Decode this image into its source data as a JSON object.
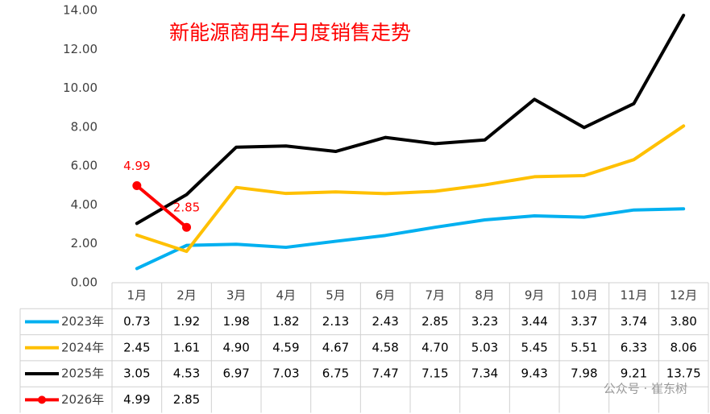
{
  "chart_data": {
    "type": "line",
    "title": "新能源商用车月度销售走势",
    "categories": [
      "1月",
      "2月",
      "3月",
      "4月",
      "5月",
      "6月",
      "7月",
      "8月",
      "9月",
      "10月",
      "11月",
      "12月"
    ],
    "series": [
      {
        "name": "2023年",
        "color": "#00b0f0",
        "values": [
          0.73,
          1.92,
          1.98,
          1.82,
          2.13,
          2.43,
          2.85,
          3.23,
          3.44,
          3.37,
          3.74,
          3.8
        ],
        "value_labels": [
          "0.73",
          "1.92",
          "1.98",
          "1.82",
          "2.13",
          "2.43",
          "2.85",
          "3.23",
          "3.44",
          "3.37",
          "3.74",
          "3.80"
        ]
      },
      {
        "name": "2024年",
        "color": "#ffc000",
        "values": [
          2.45,
          1.61,
          4.9,
          4.59,
          4.67,
          4.58,
          4.7,
          5.03,
          5.45,
          5.51,
          6.33,
          8.06
        ],
        "value_labels": [
          "2.45",
          "1.61",
          "4.90",
          "4.59",
          "4.67",
          "4.58",
          "4.70",
          "5.03",
          "5.45",
          "5.51",
          "6.33",
          "8.06"
        ]
      },
      {
        "name": "2025年",
        "color": "#000000",
        "values": [
          3.05,
          4.53,
          6.97,
          7.03,
          6.75,
          7.47,
          7.15,
          7.34,
          9.43,
          7.98,
          9.21,
          13.75
        ],
        "value_labels": [
          "3.05",
          "4.53",
          "6.97",
          "7.03",
          "6.75",
          "7.47",
          "7.15",
          "7.34",
          "9.43",
          "7.98",
          "9.21",
          "13.75"
        ]
      },
      {
        "name": "2026年",
        "color": "#ff0000",
        "marker": true,
        "data_labels": true,
        "values": [
          4.99,
          2.85,
          null,
          null,
          null,
          null,
          null,
          null,
          null,
          null,
          null,
          null
        ],
        "value_labels": [
          "4.99",
          "2.85",
          null,
          null,
          null,
          null,
          null,
          null,
          null,
          null,
          null,
          null
        ]
      }
    ],
    "ylim": [
      0,
      14
    ],
    "yticks": [
      {
        "value": 0,
        "label": "0.00"
      },
      {
        "value": 2,
        "label": "2.00"
      },
      {
        "value": 4,
        "label": "4.00"
      },
      {
        "value": 6,
        "label": "6.00"
      },
      {
        "value": 8,
        "label": "8.00"
      },
      {
        "value": 10,
        "label": "10.00"
      },
      {
        "value": 12,
        "label": "12.00"
      },
      {
        "value": 14,
        "label": "14.00"
      }
    ],
    "data_table": true,
    "watermark": "公众号 · 崔东树"
  }
}
